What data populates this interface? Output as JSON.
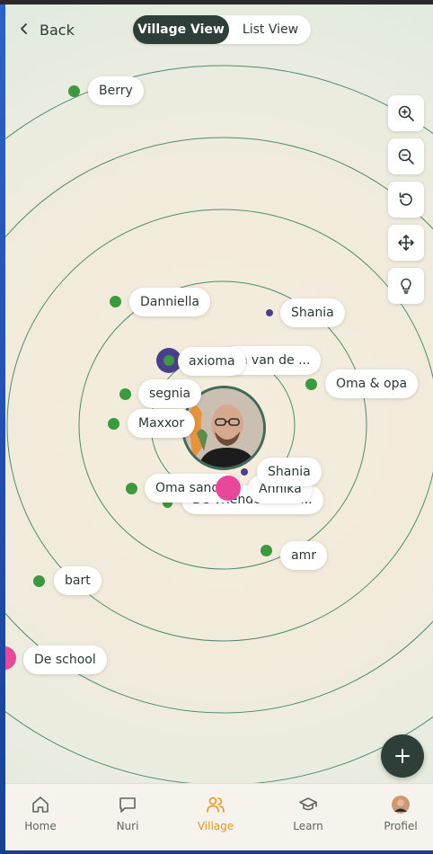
{
  "header": {
    "back_label": "Back",
    "tabs": [
      {
        "label": "Village View",
        "active": true
      },
      {
        "label": "List View",
        "active": false
      }
    ]
  },
  "map_controls": [
    "zoom-in-icon",
    "zoom-out-icon",
    "reset-icon",
    "move-icon",
    "lightbulb-icon"
  ],
  "people": {
    "berry": "Berry",
    "danniella": "Danniella",
    "shania_top": "Shania",
    "en_van_de": "en van de ...",
    "axioma": "axioma",
    "oma_opa": "Oma & opa",
    "segnia": "segnia",
    "maxxor": "Maxxor",
    "shania_bottom": "Shania",
    "annika": "Annika",
    "oma_sandy": "Oma sandy",
    "de_vrienden": "De vrienden van ...",
    "amr": "amr",
    "bart": "bart",
    "de_school": "De school"
  },
  "colors": {
    "dot_green": "#3a9a3e",
    "dot_purple": "#4a3f8f",
    "dot_pink": "#e8479a",
    "active_accent": "#e9951f",
    "ring": "#4f8a73"
  },
  "nav": {
    "home": "Home",
    "nuri": "Nuri",
    "village": "Village",
    "learn": "Learn",
    "profiel": "Profiel"
  }
}
